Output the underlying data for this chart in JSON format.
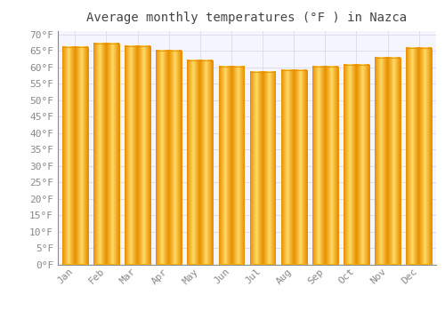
{
  "title": "Average monthly temperatures (°F ) in Nazca",
  "months": [
    "Jan",
    "Feb",
    "Mar",
    "Apr",
    "May",
    "Jun",
    "Jul",
    "Aug",
    "Sep",
    "Oct",
    "Nov",
    "Dec"
  ],
  "values": [
    66.2,
    67.1,
    66.4,
    65.1,
    62.2,
    60.1,
    58.5,
    59.0,
    60.1,
    60.8,
    63.0,
    65.8
  ],
  "bar_color_main": "#FFB300",
  "bar_color_light": "#FFD966",
  "bar_color_edge": "#E89000",
  "background_color": "#FFFFFF",
  "plot_bg_color": "#F5F5FF",
  "grid_color": "#DDDDEE",
  "tick_color": "#888888",
  "title_color": "#444444",
  "label_color": "#888888",
  "ylim_min": 0,
  "ylim_max": 70,
  "ytick_step": 5,
  "title_fontsize": 10,
  "tick_fontsize": 8
}
